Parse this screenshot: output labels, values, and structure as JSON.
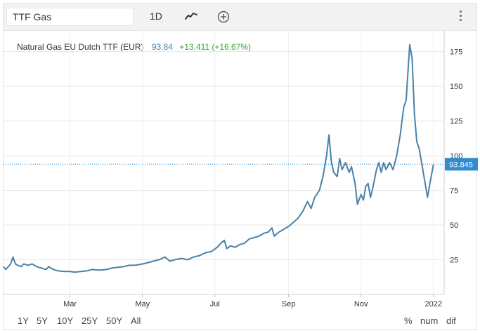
{
  "toolbar": {
    "symbol": "TTF Gas",
    "interval": "1D",
    "chart_style_icon": "line-chart-icon",
    "compare_icon": "add-circle-icon",
    "menu_icon": "kebab-menu-icon"
  },
  "legend": {
    "instrument": "Natural Gas EU Dutch TTF (EUR)",
    "last": "93.84",
    "change": "+13.411 (+16.67%)"
  },
  "price_tag": "93.845",
  "ranges": [
    "1Y",
    "5Y",
    "10Y",
    "25Y",
    "50Y",
    "All"
  ],
  "active_range": "1Y",
  "options": [
    "%",
    "num",
    "dif"
  ],
  "colors": {
    "line": "#4a81a8",
    "up": "#3ca63c",
    "tag": "#2f8ccf",
    "active": "#2f76b8"
  },
  "chart_data": {
    "type": "line",
    "title": "Natural Gas EU Dutch TTF (EUR)",
    "xlabel": "",
    "ylabel": "",
    "ylim": [
      0,
      190
    ],
    "xlim": [
      "2021-01-04",
      "2022-01-10"
    ],
    "x_ticks": [
      {
        "date": "2021-03-01",
        "label": "Mar"
      },
      {
        "date": "2021-05-01",
        "label": "May"
      },
      {
        "date": "2021-07-01",
        "label": "Jul"
      },
      {
        "date": "2021-09-01",
        "label": "Sep"
      },
      {
        "date": "2021-11-01",
        "label": "Nov"
      },
      {
        "date": "2022-01-01",
        "label": "2022"
      }
    ],
    "y_ticks": [
      25,
      50,
      75,
      100,
      125,
      150,
      175
    ],
    "grid": true,
    "current_value": 93.845,
    "series": [
      {
        "points": [
          [
            "2021-01-04",
            20
          ],
          [
            "2021-01-06",
            18
          ],
          [
            "2021-01-08",
            20
          ],
          [
            "2021-01-10",
            22
          ],
          [
            "2021-01-12",
            27
          ],
          [
            "2021-01-14",
            22
          ],
          [
            "2021-01-16",
            21
          ],
          [
            "2021-01-19",
            20
          ],
          [
            "2021-01-21",
            22
          ],
          [
            "2021-01-25",
            21
          ],
          [
            "2021-01-28",
            22
          ],
          [
            "2021-02-01",
            20
          ],
          [
            "2021-02-05",
            19
          ],
          [
            "2021-02-09",
            18
          ],
          [
            "2021-02-11",
            20
          ],
          [
            "2021-02-15",
            18
          ],
          [
            "2021-02-19",
            17
          ],
          [
            "2021-02-24",
            16.5
          ],
          [
            "2021-03-01",
            16.5
          ],
          [
            "2021-03-05",
            16
          ],
          [
            "2021-03-10",
            16.5
          ],
          [
            "2021-03-15",
            17
          ],
          [
            "2021-03-20",
            18
          ],
          [
            "2021-03-25",
            17.5
          ],
          [
            "2021-04-01",
            18
          ],
          [
            "2021-04-05",
            19
          ],
          [
            "2021-04-10",
            19.5
          ],
          [
            "2021-04-15",
            20
          ],
          [
            "2021-04-20",
            21
          ],
          [
            "2021-04-25",
            21
          ],
          [
            "2021-05-01",
            22
          ],
          [
            "2021-05-06",
            23
          ],
          [
            "2021-05-10",
            24
          ],
          [
            "2021-05-15",
            25
          ],
          [
            "2021-05-20",
            27
          ],
          [
            "2021-05-24",
            24
          ],
          [
            "2021-05-28",
            25
          ],
          [
            "2021-06-03",
            26
          ],
          [
            "2021-06-08",
            25
          ],
          [
            "2021-06-13",
            27
          ],
          [
            "2021-06-18",
            28
          ],
          [
            "2021-06-23",
            30
          ],
          [
            "2021-06-28",
            31
          ],
          [
            "2021-07-03",
            34
          ],
          [
            "2021-07-06",
            37
          ],
          [
            "2021-07-09",
            39
          ],
          [
            "2021-07-11",
            33
          ],
          [
            "2021-07-14",
            35
          ],
          [
            "2021-07-18",
            34
          ],
          [
            "2021-07-22",
            36
          ],
          [
            "2021-07-26",
            37
          ],
          [
            "2021-07-30",
            40
          ],
          [
            "2021-08-03",
            41
          ],
          [
            "2021-08-07",
            42
          ],
          [
            "2021-08-11",
            44
          ],
          [
            "2021-08-15",
            45
          ],
          [
            "2021-08-18",
            48
          ],
          [
            "2021-08-20",
            42
          ],
          [
            "2021-08-24",
            45
          ],
          [
            "2021-08-28",
            47
          ],
          [
            "2021-09-01",
            49
          ],
          [
            "2021-09-05",
            52
          ],
          [
            "2021-09-09",
            55
          ],
          [
            "2021-09-13",
            60
          ],
          [
            "2021-09-17",
            67
          ],
          [
            "2021-09-20",
            62
          ],
          [
            "2021-09-23",
            70
          ],
          [
            "2021-09-27",
            75
          ],
          [
            "2021-09-30",
            85
          ],
          [
            "2021-10-03",
            100
          ],
          [
            "2021-10-05",
            115
          ],
          [
            "2021-10-07",
            96
          ],
          [
            "2021-10-09",
            88
          ],
          [
            "2021-10-12",
            85
          ],
          [
            "2021-10-14",
            98
          ],
          [
            "2021-10-16",
            90
          ],
          [
            "2021-10-19",
            95
          ],
          [
            "2021-10-22",
            88
          ],
          [
            "2021-10-24",
            92
          ],
          [
            "2021-10-27",
            80
          ],
          [
            "2021-10-29",
            65
          ],
          [
            "2021-11-01",
            72
          ],
          [
            "2021-11-03",
            68
          ],
          [
            "2021-11-05",
            78
          ],
          [
            "2021-11-07",
            80
          ],
          [
            "2021-11-09",
            70
          ],
          [
            "2021-11-11",
            77
          ],
          [
            "2021-11-14",
            90
          ],
          [
            "2021-11-16",
            95
          ],
          [
            "2021-11-18",
            88
          ],
          [
            "2021-11-20",
            95
          ],
          [
            "2021-11-22",
            90
          ],
          [
            "2021-11-25",
            95
          ],
          [
            "2021-11-28",
            90
          ],
          [
            "2021-12-01",
            100
          ],
          [
            "2021-12-04",
            115
          ],
          [
            "2021-12-07",
            135
          ],
          [
            "2021-12-09",
            140
          ],
          [
            "2021-12-12",
            180
          ],
          [
            "2021-12-14",
            170
          ],
          [
            "2021-12-16",
            130
          ],
          [
            "2021-12-18",
            110
          ],
          [
            "2021-12-20",
            105
          ],
          [
            "2021-12-23",
            90
          ],
          [
            "2021-12-27",
            70
          ],
          [
            "2021-12-29",
            80
          ],
          [
            "2022-01-01",
            93.845
          ]
        ]
      }
    ]
  }
}
